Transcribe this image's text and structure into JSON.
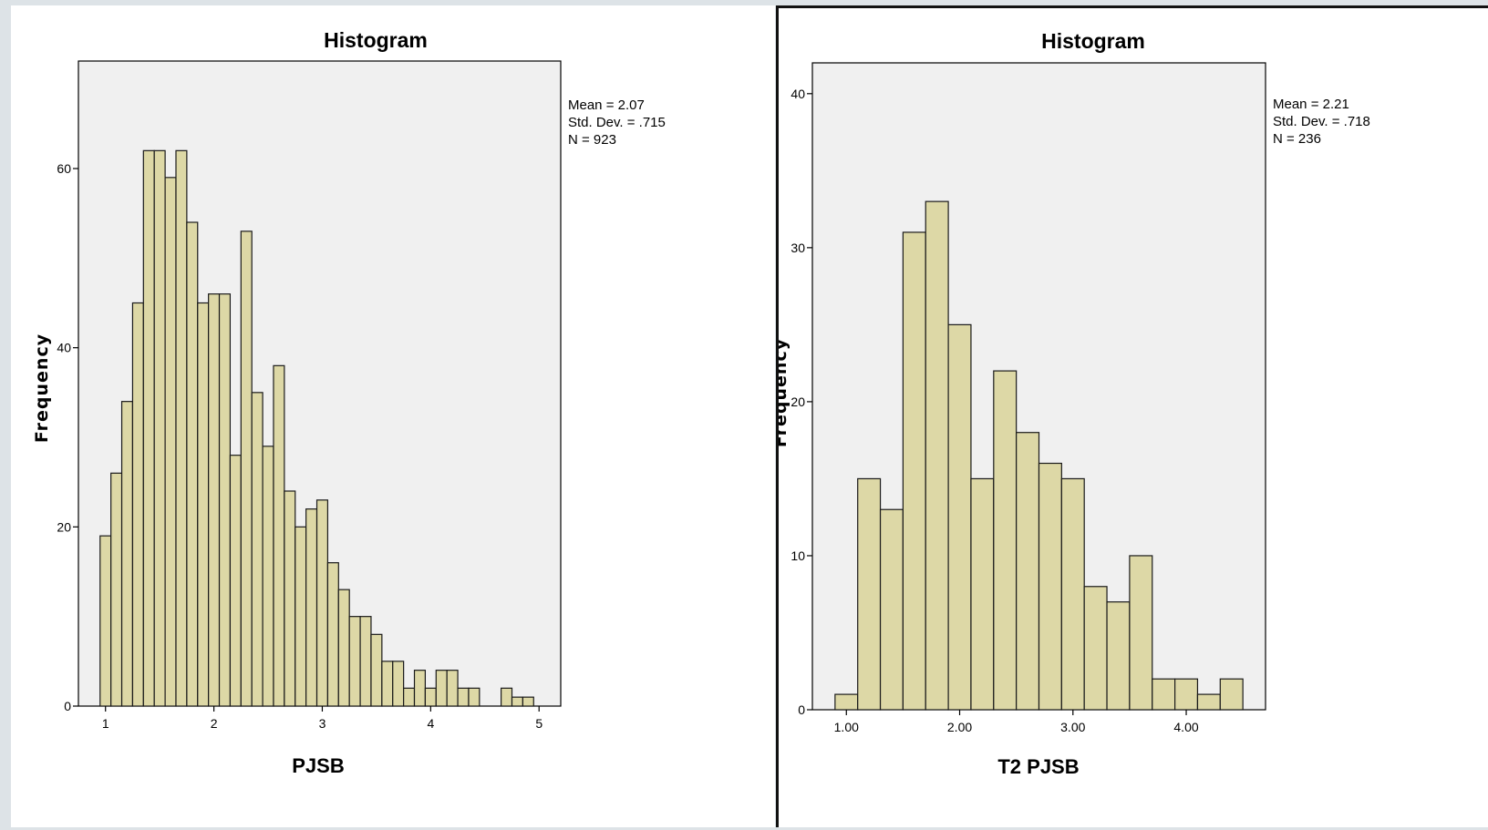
{
  "chart_data": [
    {
      "type": "bar",
      "title": "Histogram",
      "xlabel": "PJSB",
      "ylabel": "Frequency",
      "stats": [
        "Mean = 2.07",
        "Std. Dev. = .715",
        "N = 923"
      ],
      "bin_start": 0.95,
      "bin_width": 0.1,
      "values": [
        19,
        26,
        34,
        45,
        62,
        62,
        59,
        62,
        54,
        45,
        46,
        46,
        28,
        53,
        35,
        29,
        38,
        24,
        20,
        22,
        23,
        16,
        13,
        10,
        10,
        8,
        5,
        5,
        2,
        4,
        2,
        4,
        4,
        2,
        2,
        0,
        0,
        2,
        1,
        1
      ],
      "xlim": [
        0.75,
        5.2
      ],
      "ylim": [
        0,
        72
      ],
      "x_ticks": [
        1,
        2,
        3,
        4,
        5
      ],
      "x_tick_labels": [
        "1",
        "2",
        "3",
        "4",
        "5"
      ],
      "y_ticks": [
        0,
        20,
        40,
        60
      ],
      "y_tick_labels": [
        "0",
        "20",
        "40",
        "60"
      ],
      "colors": {
        "bar": "#ddd8a6",
        "plot_background": "#f0f0f0"
      },
      "grid": false,
      "legend": "none"
    },
    {
      "type": "bar",
      "title": "Histogram",
      "xlabel": "T2 PJSB",
      "ylabel": "Frequency",
      "stats": [
        "Mean = 2.21",
        "Std. Dev. = .718",
        "N = 236"
      ],
      "bin_start": 0.9,
      "bin_width": 0.2,
      "values": [
        1,
        15,
        13,
        31,
        33,
        25,
        15,
        22,
        18,
        16,
        15,
        8,
        7,
        10,
        2,
        2,
        1,
        2
      ],
      "xlim": [
        0.7,
        4.7
      ],
      "ylim": [
        0,
        42
      ],
      "x_ticks": [
        1,
        2,
        3,
        4
      ],
      "x_tick_labels": [
        "1.00",
        "2.00",
        "3.00",
        "4.00"
      ],
      "y_ticks": [
        0,
        10,
        20,
        30,
        40
      ],
      "y_tick_labels": [
        "0",
        "10",
        "20",
        "30",
        "40"
      ],
      "colors": {
        "bar": "#ddd8a6",
        "plot_background": "#f0f0f0"
      },
      "grid": false,
      "legend": "none"
    }
  ]
}
